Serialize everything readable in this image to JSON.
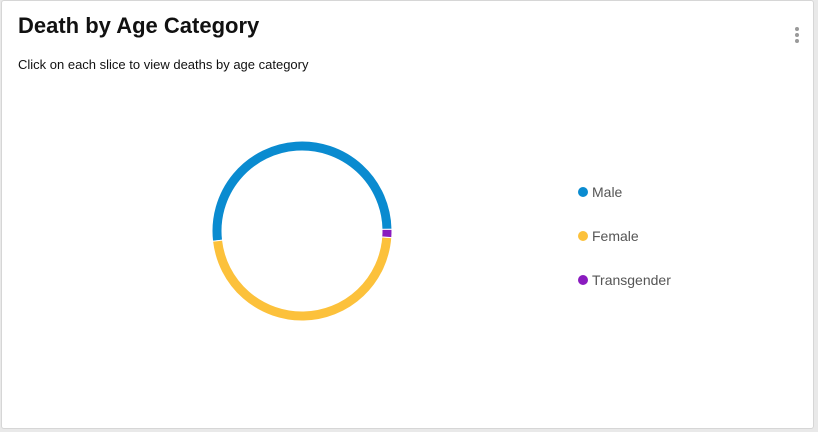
{
  "card": {
    "title": "Death by Age Category",
    "subtitle": "Click on each slice to view deaths by age category",
    "menu_icon": "more-vertical-icon"
  },
  "chart_data": {
    "type": "pie",
    "style": "donut",
    "title": "Death by Age Category",
    "categories": [
      "Male",
      "Female",
      "Transgender"
    ],
    "values": [
      51.5,
      47,
      1.5
    ],
    "colors": [
      "#0a8bd0",
      "#fcc13b",
      "#8a1bbf"
    ],
    "legend_position": "right"
  }
}
